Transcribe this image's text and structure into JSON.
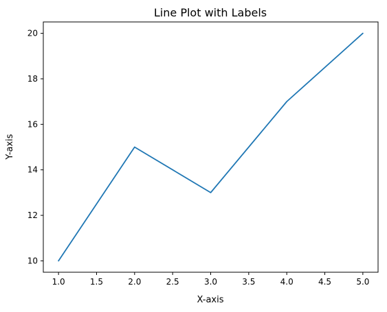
{
  "chart_data": {
    "type": "line",
    "title": "Line Plot with Labels",
    "xlabel": "X-axis",
    "ylabel": "Y-axis",
    "x": [
      1.0,
      2.0,
      3.0,
      4.0,
      5.0
    ],
    "series": [
      {
        "values": [
          10,
          15,
          13,
          17,
          20
        ],
        "color": "#1f77b4"
      }
    ],
    "xlim": [
      0.8,
      5.2
    ],
    "ylim": [
      9.5,
      20.5
    ],
    "xticks": [
      1.0,
      1.5,
      2.0,
      2.5,
      3.0,
      3.5,
      4.0,
      4.5,
      5.0
    ],
    "xtick_labels": [
      "1.0",
      "1.5",
      "2.0",
      "2.5",
      "3.0",
      "3.5",
      "4.0",
      "4.5",
      "5.0"
    ],
    "yticks": [
      10,
      12,
      14,
      16,
      18,
      20
    ],
    "ytick_labels": [
      "10",
      "12",
      "14",
      "16",
      "18",
      "20"
    ],
    "grid": false,
    "legend": "none"
  }
}
